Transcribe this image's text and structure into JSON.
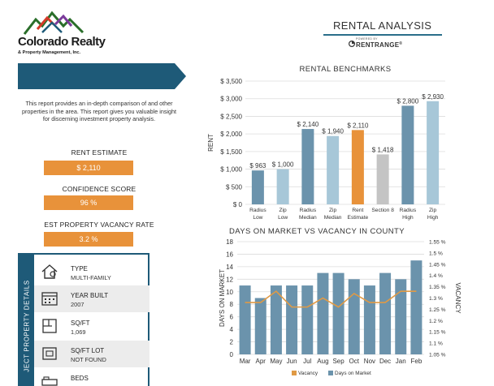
{
  "company": {
    "name": "Colorado Realty",
    "subtitle": "& Property Management, Inc."
  },
  "intro_text": "This report provides an in-depth comparison of and other properties in the area. This report gives you valuable insight for discerning investment property analysis.",
  "stats": [
    {
      "label": "RENT ESTIMATE",
      "value": "$ 2,110"
    },
    {
      "label": "CONFIDENCE SCORE",
      "value": "96 %"
    },
    {
      "label": "EST PROPERTY VACANCY RATE",
      "value": "3.2 %"
    }
  ],
  "details": {
    "band_label": "JECT PROPERTY DETAILS",
    "rows": [
      {
        "icon": "house-icon",
        "label": "TYPE",
        "value": "MULTI-FAMILY"
      },
      {
        "icon": "calendar-icon",
        "label": "YEAR BUILT",
        "value": "2007"
      },
      {
        "icon": "floorplan-icon",
        "label": "SQ/FT",
        "value": "1,069"
      },
      {
        "icon": "lot-icon",
        "label": "SQ/FT LOT",
        "value": "NOT FOUND"
      },
      {
        "icon": "bed-icon",
        "label": "BEDS",
        "value": ""
      }
    ]
  },
  "header": {
    "title": "RENTAL ANALYSIS",
    "powered_by": "POWERED BY",
    "brand": "RENTRANGE",
    "brand_mark": "®"
  },
  "colors": {
    "dark_blue": "#1e5a78",
    "orange": "#e8923a",
    "steel_blue": "#6b93ac",
    "light_blue": "#a7c7d8",
    "gray": "#c4c4c4",
    "line_orange": "#e09a45"
  },
  "chart_data": [
    {
      "type": "bar",
      "title": "RENTAL BENCHMARKS",
      "ylabel": "RENT",
      "ylim": [
        0,
        3500
      ],
      "yticks": [
        "$ 0",
        "$ 500",
        "$ 1,000",
        "$ 1,500",
        "$ 2,000",
        "$ 2,500",
        "$ 3,000",
        "$ 3,500"
      ],
      "categories": [
        [
          "Radius",
          "Low"
        ],
        [
          "Zip",
          "Low"
        ],
        [
          "Radius",
          "Median"
        ],
        [
          "Zip",
          "Median"
        ],
        [
          "Rent",
          "Estimate"
        ],
        [
          "Section 8"
        ],
        [
          "Radius",
          "High"
        ],
        [
          "Zip",
          "High"
        ]
      ],
      "values": [
        963,
        1000,
        2140,
        1940,
        2110,
        1418,
        2800,
        2930
      ],
      "data_labels": [
        "$ 963",
        "$ 1,000",
        "$ 2,140",
        "$ 1,940",
        "$ 2,110",
        "$ 1,418",
        "$ 2,800",
        "$ 2,930"
      ],
      "bar_colors": [
        "#6b93ac",
        "#a7c7d8",
        "#6b93ac",
        "#a7c7d8",
        "#e8923a",
        "#c4c4c4",
        "#6b93ac",
        "#a7c7d8"
      ],
      "grid": true
    },
    {
      "type": "bar",
      "title": "DAYS ON MARKET VS VACANCY IN COUNTY",
      "ylabel": "DAYS ON MARKET",
      "y2label": "VACANCY",
      "ylim": [
        0,
        18
      ],
      "yticks": [
        "0",
        "2",
        "4",
        "6",
        "8",
        "10",
        "12",
        "14",
        "16",
        "18"
      ],
      "y2lim": [
        1.05,
        1.55
      ],
      "y2ticks": [
        "1.05 %",
        "1.1 %",
        "1.15 %",
        "1.2 %",
        "1.25 %",
        "1.3 %",
        "1.35 %",
        "1.4 %",
        "1.45 %",
        "1.5 %",
        "1.55 %"
      ],
      "categories": [
        "Mar",
        "Apr",
        "May",
        "Jun",
        "Jul",
        "Aug",
        "Sep",
        "Oct",
        "Nov",
        "Dec",
        "Jan",
        "Feb"
      ],
      "series": [
        {
          "name": "Days on Market",
          "type": "bar",
          "color": "#6b93ac",
          "values": [
            11,
            9,
            11,
            11,
            11,
            13,
            13,
            12,
            11,
            13,
            12,
            15
          ]
        },
        {
          "name": "Vacancy",
          "type": "line",
          "axis": "right",
          "color": "#e09a45",
          "values": [
            1.28,
            1.28,
            1.33,
            1.26,
            1.26,
            1.3,
            1.26,
            1.32,
            1.28,
            1.28,
            1.33,
            1.33
          ]
        }
      ],
      "legend": "bottom",
      "grid": true
    }
  ]
}
